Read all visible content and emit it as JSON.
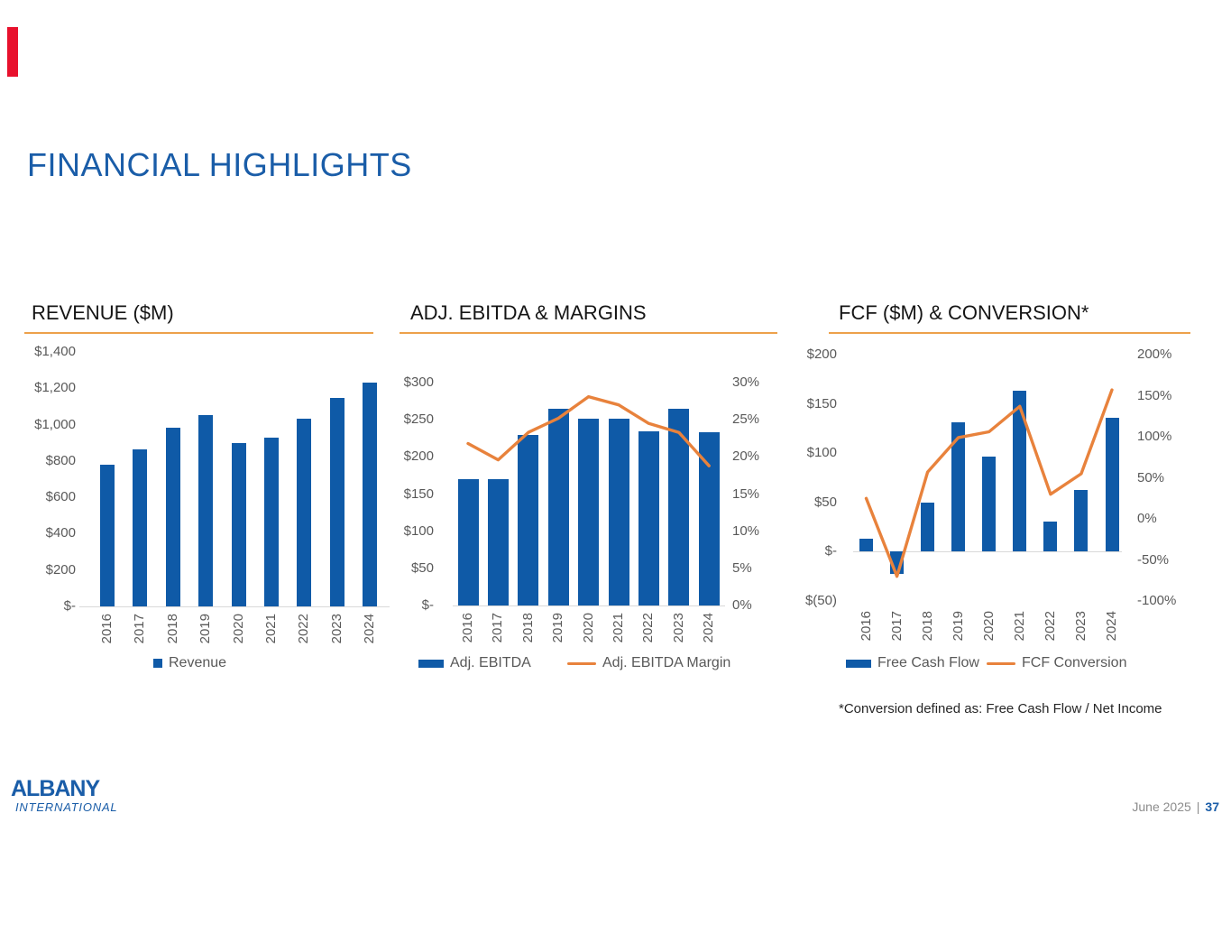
{
  "slide": {
    "title": "FINANCIAL HIGHLIGHTS",
    "footer": {
      "date": "June 2025",
      "separator": "|",
      "page": "37"
    },
    "logo": {
      "line1": "ALBANY",
      "line2": "INTERNATIONAL"
    }
  },
  "colors": {
    "brand_blue": "#1A5DA8",
    "bar_blue": "#0F5AA7",
    "line_orange": "#E8823C",
    "rule_orange": "#EDA14B",
    "accent_red": "#E8112D",
    "label_gray": "#595959",
    "axis_line_gray": "#D9D9D9"
  },
  "chart_data": [
    {
      "type": "bar",
      "title": "REVENUE ($M)",
      "categories": [
        "2016",
        "2017",
        "2018",
        "2019",
        "2020",
        "2021",
        "2022",
        "2023",
        "2024"
      ],
      "series": [
        {
          "name": "Revenue",
          "type": "bar",
          "axis": "left",
          "values": [
            780,
            865,
            983,
            1054,
            901,
            929,
            1035,
            1148,
            1231
          ]
        }
      ],
      "y_left": {
        "labels": [
          "$1,400",
          "$1,200",
          "$1,000",
          "$800",
          "$600",
          "$400",
          "$200",
          "$-"
        ],
        "values": [
          1400,
          1200,
          1000,
          800,
          600,
          400,
          200,
          0
        ]
      },
      "ylim_left": [
        0,
        1400
      ],
      "grid": false,
      "legend_position": "bottom"
    },
    {
      "type": "bar+line",
      "title": "ADJ. EBITDA & MARGINS",
      "categories": [
        "2016",
        "2017",
        "2018",
        "2019",
        "2020",
        "2021",
        "2022",
        "2023",
        "2024"
      ],
      "series": [
        {
          "name": "Adj. EBITDA",
          "type": "bar",
          "axis": "left",
          "values": [
            170,
            170,
            230,
            265,
            252,
            251,
            235,
            265,
            233
          ]
        },
        {
          "name": "Adj. EBITDA Margin",
          "type": "line",
          "axis": "right",
          "values": [
            21.8,
            19.6,
            23.3,
            25.2,
            28.1,
            27.0,
            24.5,
            23.3,
            18.8
          ]
        }
      ],
      "y_left": {
        "labels": [
          "$300",
          "$250",
          "$200",
          "$150",
          "$100",
          "$50",
          "$-"
        ],
        "values": [
          300,
          250,
          200,
          150,
          100,
          50,
          0
        ]
      },
      "y_right": {
        "labels": [
          "30%",
          "25%",
          "20%",
          "15%",
          "10%",
          "5%",
          "0%"
        ],
        "values": [
          30,
          25,
          20,
          15,
          10,
          5,
          0
        ]
      },
      "ylim_left": [
        0,
        300
      ],
      "ylim_right": [
        0,
        30
      ],
      "grid": false,
      "legend_position": "bottom"
    },
    {
      "type": "bar+line",
      "title": "FCF ($M) & CONVERSION*",
      "categories": [
        "2016",
        "2017",
        "2018",
        "2019",
        "2020",
        "2021",
        "2022",
        "2023",
        "2024"
      ],
      "series": [
        {
          "name": "Free Cash Flow",
          "type": "bar",
          "axis": "left",
          "values": [
            13,
            -23,
            50,
            131,
            97,
            163,
            31,
            63,
            136
          ]
        },
        {
          "name": "FCF Conversion",
          "type": "line",
          "axis": "right",
          "values": [
            25,
            -70,
            57,
            99,
            106,
            137,
            30,
            55,
            157
          ]
        }
      ],
      "y_left": {
        "labels": [
          "$200",
          "$150",
          "$100",
          "$50",
          "$-",
          "$(50)"
        ],
        "values": [
          200,
          150,
          100,
          50,
          0,
          -50
        ]
      },
      "y_right": {
        "labels": [
          "200%",
          "150%",
          "100%",
          "50%",
          "0%",
          "-50%",
          "-100%"
        ],
        "values": [
          200,
          150,
          100,
          50,
          0,
          -50,
          -100
        ]
      },
      "ylim_left": [
        -50,
        200
      ],
      "ylim_right": [
        -100,
        200
      ],
      "footnote": "*Conversion defined as: Free Cash Flow / Net Income",
      "grid": false,
      "legend_position": "bottom"
    }
  ]
}
